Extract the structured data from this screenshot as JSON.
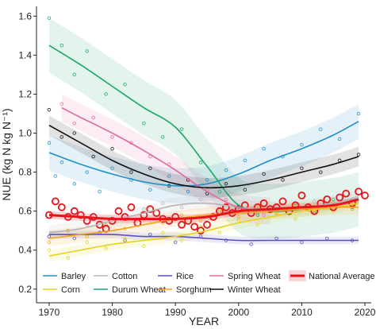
{
  "chart_data": {
    "type": "scatter",
    "xlabel": "YEAR",
    "ylabel": "NUE (kg N kg N⁻¹)",
    "xlim": [
      1968,
      2021
    ],
    "ylim": [
      0.13,
      1.65
    ],
    "xticks": [
      "1970",
      "1980",
      "1990",
      "2000",
      "2010",
      "2020"
    ],
    "yticks": [
      "0.2",
      "0.4",
      "0.6",
      "0.8",
      "1.0",
      "1.2",
      "1.4",
      "1.6"
    ],
    "grid": false,
    "legend_position": "bottom-inside",
    "series": [
      {
        "name": "Barley",
        "color": "#1f8fc7",
        "x": [
          1970,
          1975,
          1980,
          1985,
          1990,
          1995,
          2000,
          2005,
          2010,
          2015,
          2019
        ],
        "trend": [
          0.9,
          0.84,
          0.79,
          0.75,
          0.73,
          0.74,
          0.79,
          0.86,
          0.92,
          0.99,
          1.06
        ],
        "band": 0.09,
        "points": [
          [
            1970,
            0.95
          ],
          [
            1971,
            0.78
          ],
          [
            1972,
            0.85
          ],
          [
            1974,
            0.74
          ],
          [
            1976,
            0.8
          ],
          [
            1978,
            0.7
          ],
          [
            1980,
            0.82
          ],
          [
            1983,
            0.76
          ],
          [
            1986,
            0.71
          ],
          [
            1989,
            0.78
          ],
          [
            1992,
            0.7
          ],
          [
            1995,
            0.76
          ],
          [
            1998,
            0.81
          ],
          [
            2001,
            0.86
          ],
          [
            2004,
            0.92
          ],
          [
            2007,
            0.88
          ],
          [
            2010,
            0.94
          ],
          [
            2013,
            1.02
          ],
          [
            2016,
            0.97
          ],
          [
            2019,
            1.1
          ]
        ]
      },
      {
        "name": "Cotton",
        "color": "#b5b5b5",
        "x": [
          1970,
          1975,
          1980,
          1985,
          1990,
          1995,
          2000,
          2005,
          2010,
          2015,
          2019
        ],
        "trend": [
          0.49,
          0.51,
          0.55,
          0.59,
          0.63,
          0.64,
          0.62,
          0.61,
          0.62,
          0.64,
          0.67
        ],
        "band": 0.04,
        "points": [
          [
            1970,
            0.47
          ],
          [
            1973,
            0.5
          ],
          [
            1976,
            0.53
          ],
          [
            1979,
            0.52
          ],
          [
            1982,
            0.58
          ],
          [
            1985,
            0.61
          ],
          [
            1988,
            0.64
          ],
          [
            1991,
            0.62
          ],
          [
            1994,
            0.66
          ],
          [
            1997,
            0.6
          ],
          [
            2000,
            0.63
          ],
          [
            2003,
            0.59
          ],
          [
            2006,
            0.62
          ],
          [
            2009,
            0.6
          ],
          [
            2012,
            0.65
          ],
          [
            2015,
            0.63
          ],
          [
            2018,
            0.66
          ]
        ]
      },
      {
        "name": "Durum Wheat",
        "color": "#1aa66b",
        "x": [
          1970,
          1975,
          1980,
          1985,
          1990,
          1995,
          2000,
          2005,
          2010,
          2015,
          2019
        ],
        "trend": [
          1.45,
          1.35,
          1.24,
          1.13,
          1.03,
          0.83,
          0.63,
          0.6,
          0.61,
          0.63,
          0.66
        ],
        "band": 0.14,
        "points": [
          [
            1970,
            1.59
          ],
          [
            1972,
            1.45
          ],
          [
            1974,
            1.3
          ],
          [
            1976,
            1.42
          ],
          [
            1979,
            1.2
          ],
          [
            1982,
            1.25
          ],
          [
            1985,
            1.05
          ],
          [
            1988,
            0.98
          ],
          [
            1991,
            1.02
          ],
          [
            1994,
            0.85
          ],
          [
            1997,
            0.7
          ],
          [
            2000,
            0.62
          ],
          [
            2003,
            0.58
          ],
          [
            2006,
            0.61
          ],
          [
            2009,
            0.64
          ],
          [
            2012,
            0.59
          ],
          [
            2015,
            0.66
          ],
          [
            2018,
            0.62
          ]
        ]
      },
      {
        "name": "Rice",
        "color": "#5b4fc2",
        "x": [
          1970,
          1975,
          1980,
          1985,
          1990,
          1995,
          2000,
          2005,
          2010,
          2015,
          2019
        ],
        "trend": [
          0.48,
          0.48,
          0.48,
          0.47,
          0.47,
          0.46,
          0.45,
          0.45,
          0.45,
          0.45,
          0.45
        ],
        "band": 0.02,
        "points": [
          [
            1970,
            0.47
          ],
          [
            1974,
            0.46
          ],
          [
            1978,
            0.49
          ],
          [
            1982,
            0.45
          ],
          [
            1986,
            0.48
          ],
          [
            1990,
            0.44
          ],
          [
            1994,
            0.47
          ],
          [
            1998,
            0.45
          ],
          [
            2002,
            0.43
          ],
          [
            2006,
            0.46
          ],
          [
            2010,
            0.44
          ],
          [
            2014,
            0.46
          ],
          [
            2018,
            0.45
          ]
        ]
      },
      {
        "name": "Spring Wheat",
        "color": "#e06aa0",
        "x": [
          1972,
          1975,
          1980,
          1985,
          1990,
          1995,
          2000,
          2005
        ],
        "trend": [
          1.13,
          1.08,
          1.0,
          0.91,
          0.81,
          0.7,
          0.62,
          0.6
        ],
        "band": 0.07,
        "points": [
          [
            1972,
            1.15
          ],
          [
            1974,
            1.05
          ],
          [
            1977,
            1.08
          ],
          [
            1980,
            0.98
          ],
          [
            1983,
            0.95
          ],
          [
            1986,
            0.88
          ],
          [
            1989,
            0.84
          ],
          [
            1992,
            0.76
          ],
          [
            1995,
            0.71
          ],
          [
            1998,
            0.66
          ],
          [
            2001,
            0.61
          ],
          [
            2004,
            0.58
          ]
        ]
      },
      {
        "name": "Corn",
        "color": "#e6d21a",
        "x": [
          1970,
          1975,
          1980,
          1985,
          1990,
          1995,
          2000,
          2005,
          2010,
          2015,
          2019
        ],
        "trend": [
          0.37,
          0.4,
          0.43,
          0.45,
          0.47,
          0.5,
          0.54,
          0.57,
          0.6,
          0.62,
          0.64
        ],
        "band": 0.03,
        "points": [
          [
            1970,
            0.4
          ],
          [
            1973,
            0.36
          ],
          [
            1976,
            0.44
          ],
          [
            1979,
            0.41
          ],
          [
            1982,
            0.46
          ],
          [
            1985,
            0.42
          ],
          [
            1988,
            0.49
          ],
          [
            1991,
            0.45
          ],
          [
            1994,
            0.52
          ],
          [
            1997,
            0.49
          ],
          [
            2000,
            0.55
          ],
          [
            2003,
            0.53
          ],
          [
            2006,
            0.58
          ],
          [
            2009,
            0.56
          ],
          [
            2012,
            0.61
          ],
          [
            2015,
            0.6
          ],
          [
            2018,
            0.63
          ]
        ]
      },
      {
        "name": "Sorghum",
        "color": "#f5a21a",
        "x": [
          1970,
          1975,
          1980,
          1985,
          1990,
          1995,
          2000,
          2005,
          2010,
          2015,
          2019
        ],
        "trend": [
          0.46,
          0.48,
          0.5,
          0.53,
          0.56,
          0.58,
          0.59,
          0.6,
          0.61,
          0.62,
          0.62
        ],
        "band": 0.04,
        "points": [
          [
            1970,
            0.44
          ],
          [
            1973,
            0.5
          ],
          [
            1976,
            0.47
          ],
          [
            1979,
            0.53
          ],
          [
            1982,
            0.51
          ],
          [
            1985,
            0.56
          ],
          [
            1988,
            0.54
          ],
          [
            1991,
            0.58
          ],
          [
            1994,
            0.55
          ],
          [
            1997,
            0.6
          ],
          [
            2000,
            0.57
          ],
          [
            2003,
            0.62
          ],
          [
            2006,
            0.59
          ],
          [
            2009,
            0.63
          ],
          [
            2012,
            0.6
          ],
          [
            2015,
            0.64
          ],
          [
            2018,
            0.61
          ]
        ]
      },
      {
        "name": "Winter Wheat",
        "color": "#111111",
        "x": [
          1970,
          1975,
          1980,
          1985,
          1990,
          1995,
          2000,
          2005,
          2010,
          2015,
          2019
        ],
        "trend": [
          1.04,
          0.95,
          0.86,
          0.79,
          0.74,
          0.72,
          0.73,
          0.76,
          0.8,
          0.84,
          0.88
        ],
        "band": 0.05,
        "points": [
          [
            1970,
            1.12
          ],
          [
            1972,
            0.98
          ],
          [
            1974,
            1.0
          ],
          [
            1977,
            0.88
          ],
          [
            1980,
            0.92
          ],
          [
            1983,
            0.8
          ],
          [
            1986,
            0.82
          ],
          [
            1989,
            0.73
          ],
          [
            1992,
            0.76
          ],
          [
            1995,
            0.69
          ],
          [
            1998,
            0.74
          ],
          [
            2001,
            0.71
          ],
          [
            2004,
            0.79
          ],
          [
            2007,
            0.76
          ],
          [
            2010,
            0.82
          ],
          [
            2013,
            0.8
          ],
          [
            2016,
            0.86
          ],
          [
            2019,
            0.89
          ]
        ]
      },
      {
        "name": "National Average",
        "color": "#e8141c",
        "bold": true,
        "x": [
          1970,
          1975,
          1980,
          1985,
          1990,
          1995,
          2000,
          2005,
          2010,
          2015,
          2019
        ],
        "trend": [
          0.58,
          0.57,
          0.56,
          0.56,
          0.56,
          0.57,
          0.6,
          0.61,
          0.62,
          0.63,
          0.66
        ],
        "band": 0.02,
        "points": [
          [
            1970,
            0.58
          ],
          [
            1971,
            0.65
          ],
          [
            1972,
            0.62
          ],
          [
            1973,
            0.57
          ],
          [
            1974,
            0.6
          ],
          [
            1975,
            0.58
          ],
          [
            1976,
            0.55
          ],
          [
            1977,
            0.57
          ],
          [
            1978,
            0.53
          ],
          [
            1979,
            0.51
          ],
          [
            1980,
            0.55
          ],
          [
            1981,
            0.6
          ],
          [
            1982,
            0.57
          ],
          [
            1983,
            0.62
          ],
          [
            1984,
            0.54
          ],
          [
            1985,
            0.58
          ],
          [
            1986,
            0.61
          ],
          [
            1987,
            0.59
          ],
          [
            1988,
            0.56
          ],
          [
            1989,
            0.55
          ],
          [
            1990,
            0.57
          ],
          [
            1991,
            0.53
          ],
          [
            1992,
            0.55
          ],
          [
            1993,
            0.52
          ],
          [
            1994,
            0.5
          ],
          [
            1995,
            0.53
          ],
          [
            1996,
            0.57
          ],
          [
            1997,
            0.6
          ],
          [
            1998,
            0.62
          ],
          [
            1999,
            0.59
          ],
          [
            2000,
            0.61
          ],
          [
            2001,
            0.63
          ],
          [
            2002,
            0.59
          ],
          [
            2003,
            0.62
          ],
          [
            2004,
            0.64
          ],
          [
            2005,
            0.61
          ],
          [
            2006,
            0.62
          ],
          [
            2007,
            0.65
          ],
          [
            2008,
            0.6
          ],
          [
            2009,
            0.63
          ],
          [
            2010,
            0.68
          ],
          [
            2011,
            0.62
          ],
          [
            2012,
            0.6
          ],
          [
            2013,
            0.64
          ],
          [
            2014,
            0.66
          ],
          [
            2015,
            0.62
          ],
          [
            2016,
            0.67
          ],
          [
            2017,
            0.69
          ],
          [
            2018,
            0.64
          ],
          [
            2019,
            0.7
          ],
          [
            2020,
            0.68
          ]
        ]
      }
    ],
    "legend": {
      "rows": [
        [
          "Barley",
          "Cotton",
          "Rice",
          "Spring Wheat",
          "National Average"
        ],
        [
          "Corn",
          "Durum Wheat",
          "Sorghum",
          "Winter Wheat"
        ]
      ]
    }
  }
}
